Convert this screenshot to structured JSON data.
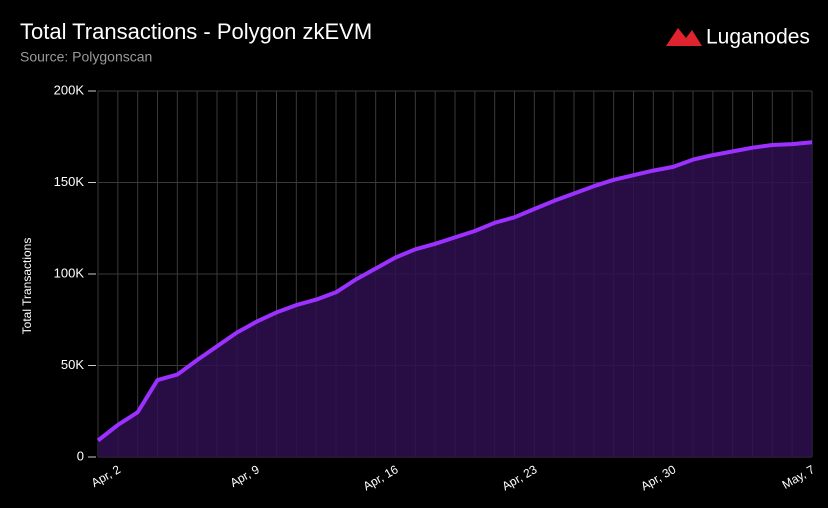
{
  "chart_data": {
    "type": "area",
    "title": "Total Transactions - Polygon zkEVM",
    "subtitle": "Source: Polygonscan",
    "brand": "Luganodes",
    "y_label": "Total Transactions",
    "categories": [
      null,
      "Apr, 2",
      null,
      null,
      null,
      null,
      null,
      null,
      "Apr, 9",
      null,
      null,
      null,
      null,
      null,
      null,
      "Apr, 16",
      null,
      null,
      null,
      null,
      null,
      null,
      "Apr, 23",
      null,
      null,
      null,
      null,
      null,
      null,
      "Apr, 30",
      null,
      null,
      null,
      null,
      null,
      null,
      "May, 7"
    ],
    "series": [
      {
        "name": "Total Transactions",
        "color": "#9b30ff",
        "fill": "#2e0f4f",
        "values": [
          9000,
          17500,
          24500,
          42000,
          45000,
          53000,
          60500,
          68000,
          74000,
          79000,
          83000,
          86000,
          90000,
          97000,
          103000,
          109000,
          113500,
          116500,
          120000,
          123500,
          128000,
          131000,
          135500,
          140000,
          144000,
          148000,
          151500,
          154000,
          156500,
          158500,
          162500,
          165000,
          167000,
          169000,
          170500,
          171000,
          172000
        ]
      }
    ],
    "ylim": [
      0,
      200000
    ],
    "yticks": [
      0,
      {
        "value": 50000,
        "label": "50K"
      },
      {
        "value": 100000,
        "label": "100K"
      },
      {
        "value": 150000,
        "label": "150K"
      },
      {
        "value": 200000,
        "label": "200K"
      }
    ],
    "grid": true
  }
}
